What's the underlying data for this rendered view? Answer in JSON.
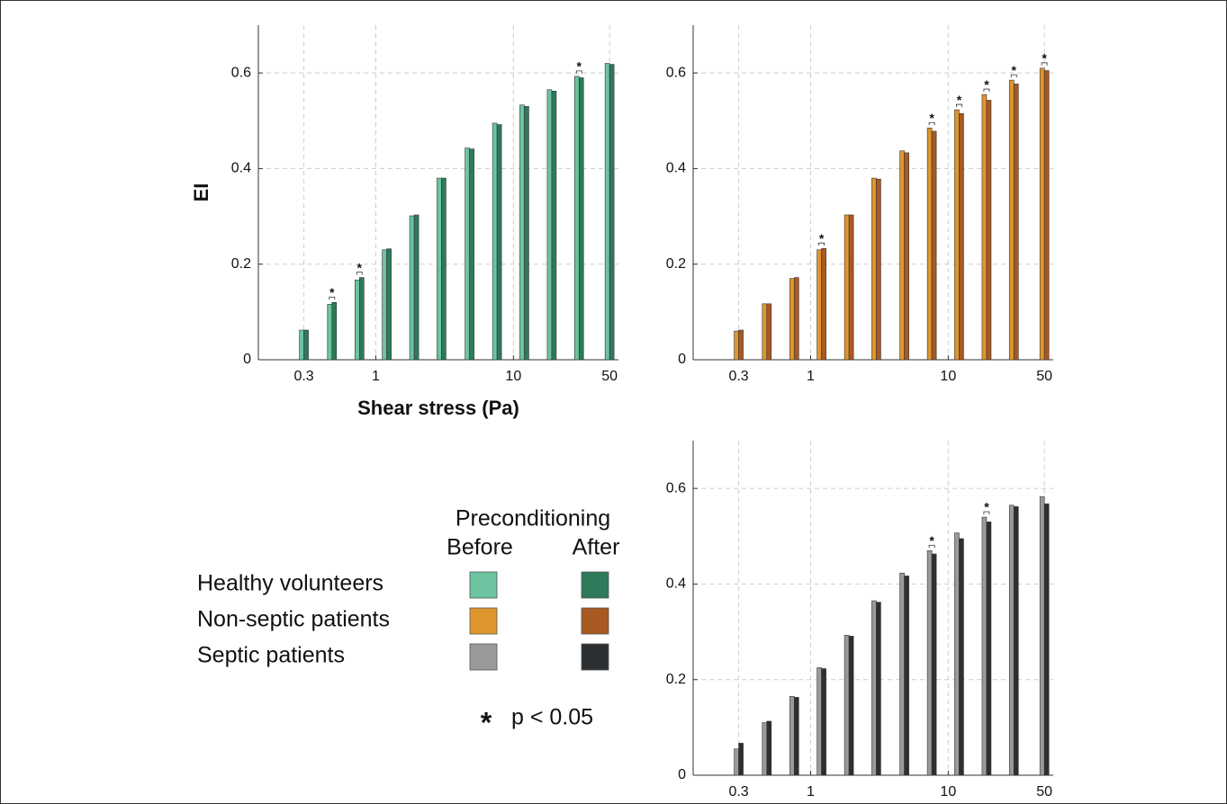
{
  "chart_data": [
    {
      "type": "bar",
      "name": "Healthy volunteers",
      "y_label": "EI",
      "x_label": "Shear stress (Pa)",
      "log_x": true,
      "grid": true,
      "x": [
        0.3,
        0.48,
        0.76,
        1.2,
        1.9,
        3,
        4.8,
        7.6,
        12,
        19,
        30,
        50
      ],
      "series": [
        {
          "name": "Before",
          "color": "#6cc4a0",
          "values": [
            0.062,
            0.116,
            0.167,
            0.23,
            0.301,
            0.38,
            0.443,
            0.495,
            0.533,
            0.565,
            0.593,
            0.62
          ]
        },
        {
          "name": "After",
          "color": "#2e7a5a",
          "values": [
            0.062,
            0.12,
            0.172,
            0.232,
            0.303,
            0.38,
            0.441,
            0.492,
            0.53,
            0.562,
            0.59,
            0.618
          ]
        }
      ],
      "significant": [
        false,
        true,
        true,
        false,
        false,
        false,
        false,
        false,
        false,
        false,
        true,
        false
      ],
      "xlim": [
        0.14,
        58
      ],
      "xticks": [
        0.3,
        1,
        10,
        50
      ],
      "ylim": [
        0,
        0.7
      ],
      "yticks": [
        0,
        0.2,
        0.4,
        0.6
      ]
    },
    {
      "type": "bar",
      "name": "Non-septic patients",
      "log_x": true,
      "grid": true,
      "x": [
        0.3,
        0.48,
        0.76,
        1.2,
        1.9,
        3,
        4.8,
        7.6,
        12,
        19,
        30,
        50
      ],
      "series": [
        {
          "name": "Before",
          "color": "#e0962e",
          "values": [
            0.06,
            0.117,
            0.17,
            0.23,
            0.303,
            0.38,
            0.437,
            0.485,
            0.523,
            0.555,
            0.585,
            0.61
          ]
        },
        {
          "name": "After",
          "color": "#a85a22",
          "values": [
            0.062,
            0.117,
            0.172,
            0.233,
            0.303,
            0.378,
            0.433,
            0.478,
            0.515,
            0.543,
            0.577,
            0.605
          ]
        }
      ],
      "significant": [
        false,
        false,
        false,
        true,
        false,
        false,
        false,
        true,
        true,
        true,
        true,
        true
      ],
      "xlim": [
        0.14,
        58
      ],
      "xticks": [
        0.3,
        1,
        10,
        50
      ],
      "ylim": [
        0,
        0.7
      ],
      "yticks": [
        0,
        0.2,
        0.4,
        0.6
      ]
    },
    {
      "type": "bar",
      "name": "Septic patients",
      "log_x": true,
      "grid": true,
      "x": [
        0.3,
        0.48,
        0.76,
        1.2,
        1.9,
        3,
        4.8,
        7.6,
        12,
        19,
        30,
        50
      ],
      "series": [
        {
          "name": "Before",
          "color": "#999a9c",
          "values": [
            0.055,
            0.11,
            0.165,
            0.225,
            0.293,
            0.365,
            0.423,
            0.47,
            0.507,
            0.54,
            0.565,
            0.583
          ]
        },
        {
          "name": "After",
          "color": "#2c3033",
          "values": [
            0.067,
            0.113,
            0.163,
            0.223,
            0.291,
            0.362,
            0.417,
            0.463,
            0.495,
            0.53,
            0.562,
            0.568
          ]
        }
      ],
      "significant": [
        false,
        false,
        false,
        false,
        false,
        false,
        false,
        true,
        false,
        true,
        false,
        false
      ],
      "xlim": [
        0.14,
        58
      ],
      "xticks": [
        0.3,
        1,
        10,
        50
      ],
      "ylim": [
        0,
        0.7
      ],
      "yticks": [
        0,
        0.2,
        0.4,
        0.6
      ]
    }
  ],
  "legend_title": "Preconditioning",
  "significance": {
    "marker": "*",
    "label": "p < 0.05"
  }
}
